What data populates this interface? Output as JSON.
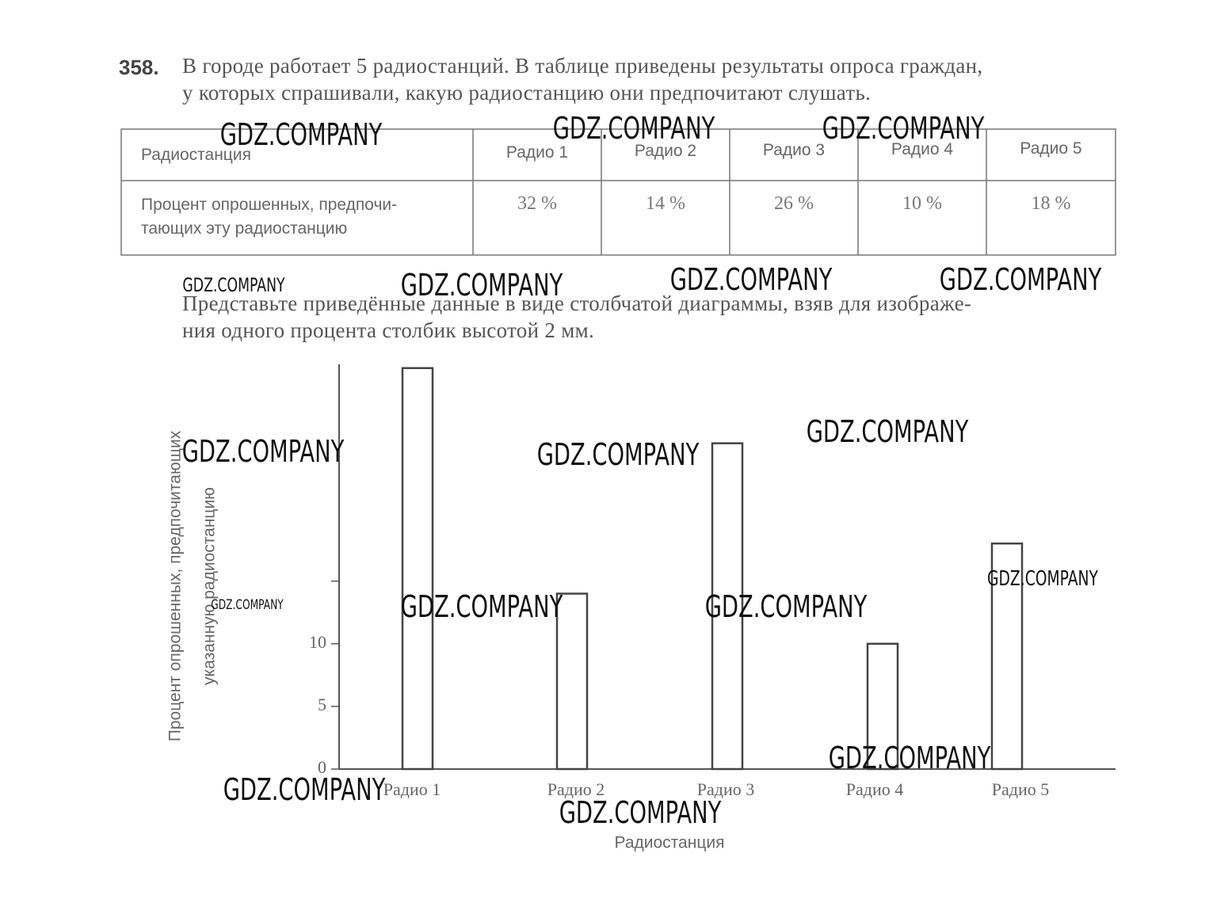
{
  "problem": {
    "number": "358.",
    "text": [
      "В городе работает 5 радиостанций. В таблице приведены результаты опроса граждан,",
      "у которых спрашивали, какую радиостанцию они предпочитают слушать."
    ]
  },
  "table": {
    "header": [
      "Радиостанция",
      "Радио 1",
      "Радио 2",
      "Радио 3",
      "Радио 4",
      "Радио 5"
    ],
    "row_label": [
      "Процент опрошенных, предпочи-",
      "тающих эту радиостанцию"
    ],
    "row": [
      "32 %",
      "14 %",
      "26 %",
      "10 %",
      "18 %"
    ]
  },
  "task": [
    "Представьте приведённые данные в виде столбчатой диаграммы, взяв для изображе-",
    "ния одного процента столбик высотой 2 мм."
  ],
  "watermarks": [
    "GDZ.COMPANY",
    "GDZ.COMPANY",
    "GDZ.COMPANY",
    "GDZ.COMPANY",
    "GDZ.COMPANY",
    "GDZ.COMPANY",
    "GDZ.COMPANY",
    "GDZ.COMPANY",
    "GDZ.COMPANY",
    "GDZ.COMPANY",
    "GDZ.COMPANY",
    "GDZ.COMPANY",
    "GDZ.COMPANY",
    "GDZ.COMPANY",
    "GDZ.COMPANY",
    "GDZ.COMPANY",
    "GDZ.COMPANY"
  ],
  "chart_data": {
    "type": "bar",
    "categories": [
      "Радио 1",
      "Радио 2",
      "Радио 3",
      "Радио 4",
      "Радио 5"
    ],
    "values": [
      32,
      14,
      26,
      10,
      18
    ],
    "x_label": "Радиостанция",
    "y_label": [
      "Процент опрошенных, предпочитающих",
      "указанную радиостанцию"
    ],
    "ylim": [
      0,
      32.3
    ],
    "yticks": [
      0,
      5,
      10
    ],
    "unlabeled_yticks": [
      15
    ],
    "color": "#ffffff"
  }
}
